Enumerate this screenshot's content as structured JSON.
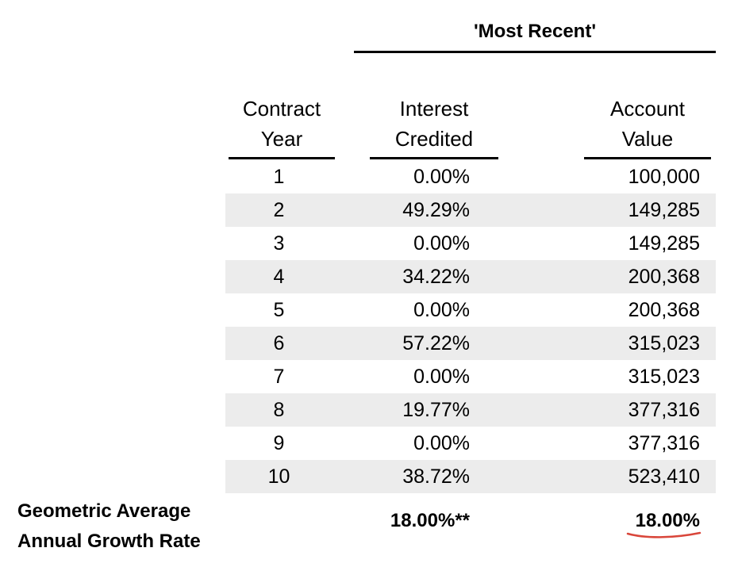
{
  "header": {
    "group_title": "'Most Recent'"
  },
  "columns": {
    "year": [
      "Contract",
      "Year"
    ],
    "interest": [
      "Interest",
      "Credited"
    ],
    "account": [
      "Account",
      "Value"
    ]
  },
  "rows": [
    {
      "year": "1",
      "interest": "0.00%",
      "account": "100,000"
    },
    {
      "year": "2",
      "interest": "49.29%",
      "account": "149,285"
    },
    {
      "year": "3",
      "interest": "0.00%",
      "account": "149,285"
    },
    {
      "year": "4",
      "interest": "34.22%",
      "account": "200,368"
    },
    {
      "year": "5",
      "interest": "0.00%",
      "account": "200,368"
    },
    {
      "year": "6",
      "interest": "57.22%",
      "account": "315,023"
    },
    {
      "year": "7",
      "interest": "0.00%",
      "account": "315,023"
    },
    {
      "year": "8",
      "interest": "19.77%",
      "account": "377,316"
    },
    {
      "year": "9",
      "interest": "0.00%",
      "account": "377,316"
    },
    {
      "year": "10",
      "interest": "38.72%",
      "account": "523,410"
    }
  ],
  "footer": {
    "label": [
      "Geometric Average",
      "Annual Growth Rate"
    ],
    "interest_value": "18.00%**",
    "account_value": "18.00%"
  },
  "colors": {
    "row_shade": "#ececec",
    "annotation_underline": "#d9463a"
  }
}
